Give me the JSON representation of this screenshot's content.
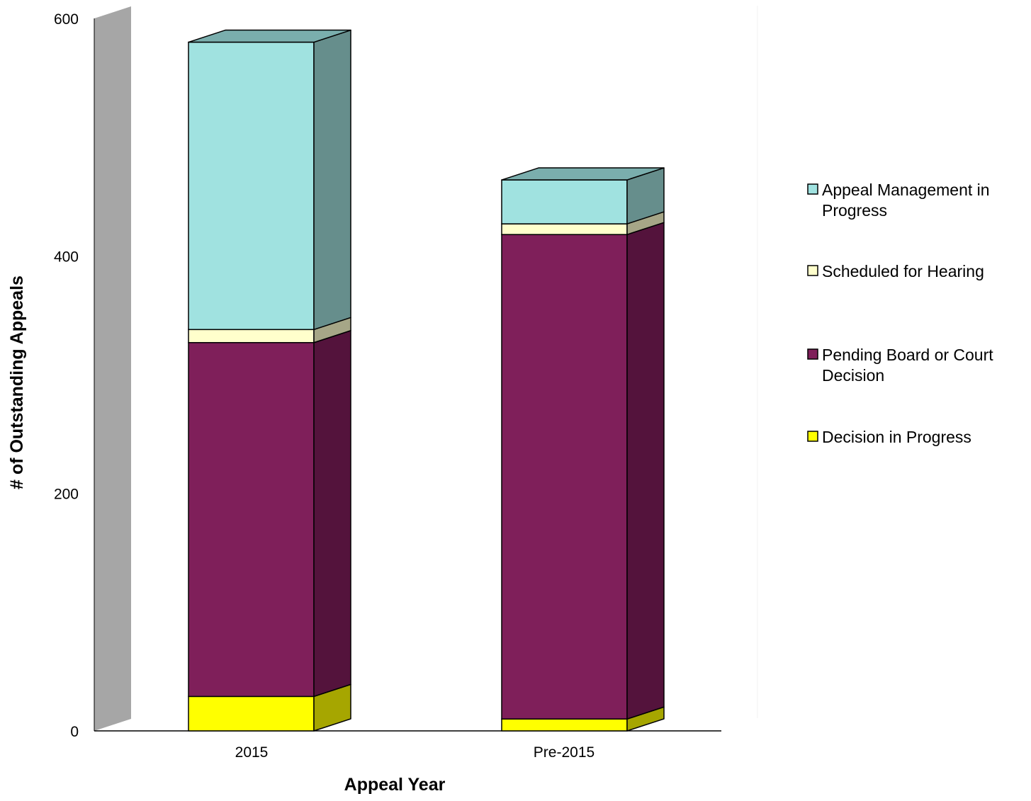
{
  "chart_data": {
    "type": "bar",
    "stacked": true,
    "three_d": true,
    "title": "",
    "xlabel": "Appeal Year",
    "ylabel": "# of Outstanding Appeals",
    "categories": [
      "2015",
      "Pre-2015"
    ],
    "ylim": [
      0,
      600
    ],
    "yticks": [
      "0",
      "200",
      "400",
      "600"
    ],
    "grid": false,
    "legend_position": "right",
    "series": [
      {
        "name": "Decision in Progress",
        "values": [
          29,
          10
        ],
        "colors": {
          "front": "#ffff00",
          "side": "#a6a600",
          "top": "#c8c800"
        }
      },
      {
        "name": "Pending Board or Court Decision",
        "values": [
          298,
          408
        ],
        "colors": {
          "front": "#7f1f5a",
          "side": "#54133c",
          "top": "#6a1a4b"
        }
      },
      {
        "name": "Scheduled for Hearing",
        "values": [
          11,
          9
        ],
        "colors": {
          "front": "#ffffcc",
          "side": "#a6a687",
          "top": "#d9d9ad"
        }
      },
      {
        "name": "Appeal Management in Progress",
        "values": [
          242,
          37
        ],
        "colors": {
          "front": "#a0e2e0",
          "side": "#668e8c",
          "top": "#7aaead"
        }
      }
    ],
    "legend_entries": [
      {
        "lines": [
          "Appeal Management in",
          "Progress"
        ],
        "color": "#a0e2e0"
      },
      {
        "lines": [
          "Scheduled for Hearing"
        ],
        "color": "#ffffcc"
      },
      {
        "lines": [
          "Pending Board or Court",
          "Decision"
        ],
        "color": "#7f1f5a"
      },
      {
        "lines": [
          "Decision in Progress"
        ],
        "color": "#ffff00"
      }
    ],
    "wall_color": "#a6a6a6",
    "axis_color": "#000000"
  }
}
